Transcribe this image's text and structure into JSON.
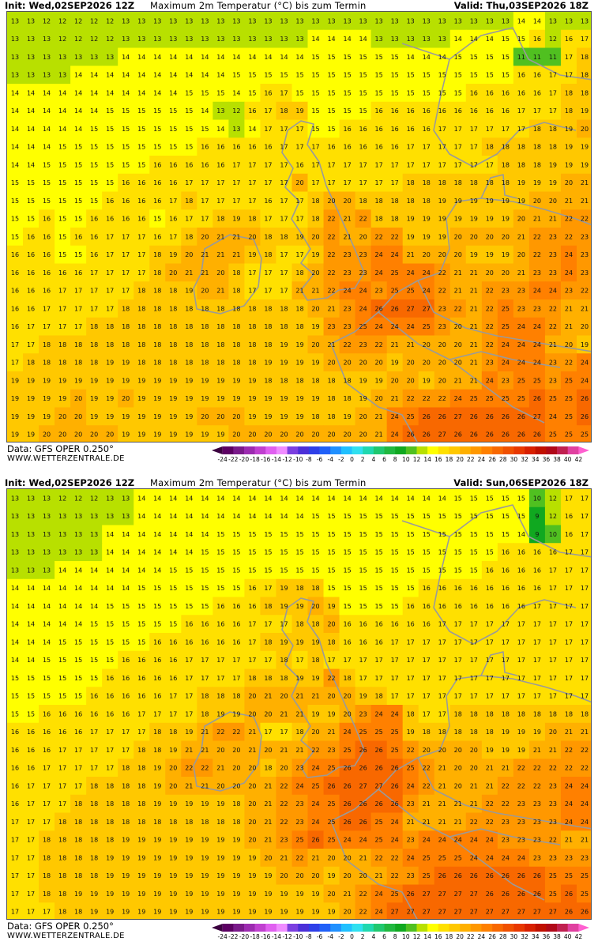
{
  "panels": [
    {
      "init": "Init: Wed,02SEP2026 12Z",
      "title": "Maximum 2m Temperatur (°C) bis zum Termin",
      "valid": "Valid: Thu,03SEP2026 18Z",
      "data_source": "Data: GFS OPER 0.250°",
      "website": "WWW.WETTERZENTRALE.DE",
      "rows": [
        "13 13 12 12 12 12 12 13 13 13 13 13 13 13 13 13 13 13 13 13 13 13 13 13 13 13 13 13 13 13 13 13 14 14 13 13 13",
        "13 13 13 12 12 12 12 13 13 13 13 13 13 13 13 13 13 13 13 14 14 14 14 13 13 13 13 13 14 14 14 15 15 16 12 16 17",
        "13 13 13 13 13 13 13 14 14 14 14 14 14 14 14 14 14 14 14 15 15 15 15 15 15 14 14 14 15 15 15 15 11 11 11 17 18",
        "13 13 13 13 14 14 14 14 14 14 14 14 14 14 15 15 15 15 15 15 15 15 15 15 15 15 15 15 15 15 15 15 16 16 17 17 18",
        "14 14 14 14 14 14 14 14 14 14 14 15 15 15 14 15 16 17 15 15 15 15 15 15 15 15 15 15 15 16 16 16 16 16 17 18 18",
        "14 14 14 14 14 14 15 15 15 15 15 15 14 13 12 16 17 18 19 15 15 15 15 16 16 16 16 16 16 16 16 16 17 17 17 18 19",
        "14 14 14 14 14 15 15 15 15 15 15 15 15 14 13 14 17 17 17 15 15 16 16 16 16 16 16 17 17 17 17 17 17 18 18 19 20",
        "14 14 14 15 15 15 15 15 15 15 15 15 16 16 16 16 16 17 17 17 16 16 16 16 16 17 17 17 17 17 18 18 18 18 18 19 19",
        "14 14 15 15 15 15 15 15 15 16 16 16 16 16 17 17 17 17 16 17 17 17 17 17 17 17 17 17 17 17 17 18 18 18 19 19 19",
        "15 15 15 15 15 15 15 16 16 16 16 17 17 17 17 17 17 17 20 17 17 17 17 17 17 18 18 18 18 18 18 18 19 19 19 20 21",
        "15 15 15 15 15 15 16 16 16 16 17 18 17 17 17 17 16 17 17 18 20 20 18 18 18 18 18 19 19 19 19 19 19 20 20 21 21",
        "15 15 16 15 15 16 16 16 16 15 16 17 17 18 19 18 17 17 17 18 22 21 22 18 18 19 19 19 19 19 19 19 20 21 21 22 22",
        "15 16 16 15 16 16 17 17 17 16 17 18 20 21 21 20 18 18 19 20 22 21 20 22 22 19 19 19 20 20 20 20 21 22 23 22 23",
        "16 16 16 15 15 16 17 17 17 18 19 20 21 21 21 19 18 17 17 19 22 23 23 24 24 21 20 20 20 19 19 19 20 22 23 24 23",
        "16 16 16 16 16 17 17 17 17 18 20 21 21 20 18 17 17 17 18 20 22 23 23 24 25 24 24 22 21 21 20 20 21 23 23 24 23",
        "16 16 16 17 17 17 17 17 18 18 18 19 20 21 18 17 17 17 21 21 22 24 24 23 25 25 24 22 21 21 22 23 23 24 24 23 22",
        "16 16 17 17 17 17 17 18 18 18 18 18 18 18 18 18 18 18 18 20 21 23 24 26 26 27 27 23 22 21 22 25 23 23 22 21 21",
        "16 17 17 17 17 18 18 18 18 18 18 18 18 18 18 18 18 18 18 19 23 23 25 24 24 24 25 23 20 21 22 25 24 24 22 21 20",
        "17 17 18 18 18 18 18 18 18 18 18 18 18 18 18 18 18 19 19 20 21 22 23 22 21 21 20 20 20 21 22 24 24 24 21 20 19",
        "17 18 18 18 18 18 19 19 18 18 18 18 18 18 18 18 19 19 19 19 20 20 20 20 19 20 20 20 20 21 23 24 24 24 23 22 24",
        "19 19 19 19 19 19 19 19 19 19 19 19 19 19 19 19 18 18 18 18 18 18 19 19 20 20 19 20 21 21 24 23 25 25 23 25 24",
        "19 19 19 19 20 19 19 20 19 19 19 19 19 19 19 19 19 19 19 19 18 18 19 20 21 22 22 22 24 25 25 25 25 26 25 25 26",
        "19 19 19 20 20 19 19 19 19 19 19 19 20 20 20 19 19 19 19 18 18 19 20 21 24 25 26 26 27 26 26 26 26 27 24 25 26",
        "19 19 20 20 20 20 20 19 19 19 19 19 19 19 20 20 20 20 20 20 20 20 20 21 24 26 26 27 26 26 26 26 26 26 25 25 25"
      ]
    },
    {
      "init": "Init: Wed,02SEP2026 12Z",
      "title": "Maximum 2m Temperatur (°C) bis zum Termin",
      "valid": "Valid: Sun,06SEP2026 18Z",
      "data_source": "Data: GFS OPER 0.250°",
      "website": "WWW.WETTERZENTRALE.DE",
      "rows": [
        "13 13 13 12 12 12 13 13 14 14 14 14 14 14 14 14 14 14 14 14 14 14 14 14 14 14 14 14 15 15 15 15 15 10 12 17 17",
        "13 13 13 13 13 13 13 13 14 14 14 14 14 14 14 14 14 14 14 15 15 15 15 15 15 15 15 15 15 15 15 15 15 9 12 16 17",
        "13 13 13 13 13 13 14 14 14 14 14 14 14 15 15 15 15 15 15 15 15 15 15 15 15 15 15 15 15 15 15 15 14 9 10 16 17",
        "13 13 13 13 13 13 14 14 14 14 14 14 15 15 15 15 15 15 15 15 15 15 15 15 15 15 15 15 15 15 15 16 16 16 16 17 17",
        "13 13 13 14 14 14 14 14 14 14 15 15 15 15 15 15 15 15 15 15 15 15 15 15 15 15 15 15 15 15 16 16 16 16 17 17 17",
        "14 14 14 14 14 14 14 14 15 15 15 15 15 15 15 16 17 19 18 18 15 15 15 15 15 15 16 16 16 16 16 16 16 16 17 17 17",
        "14 14 14 14 14 14 15 15 15 15 15 15 15 16 16 16 18 19 19 20 19 15 15 15 15 16 16 16 16 16 16 16 16 17 17 17 17",
        "14 14 14 14 14 15 15 15 15 15 15 16 16 16 16 17 17 17 18 18 20 16 16 16 16 16 16 17 17 17 17 17 17 17 17 17 17",
        "14 14 14 15 15 15 15 15 15 16 16 16 16 16 16 17 18 19 19 19 18 16 16 16 17 17 17 17 17 17 17 17 17 17 17 17 17",
        "14 14 15 15 15 15 15 16 16 16 16 17 17 17 17 17 17 18 17 18 17 17 17 17 17 17 17 17 17 17 17 17 17 17 17 17 17",
        "15 15 15 15 15 15 16 16 16 16 16 17 17 17 17 18 18 18 19 19 22 18 17 17 17 17 17 17 17 17 17 17 17 17 17 17 17",
        "15 15 15 15 15 16 16 16 16 16 17 17 18 18 18 20 21 20 21 21 20 20 19 18 17 17 17 17 17 17 17 17 17 17 17 17 17",
        "15 15 16 16 16 16 16 16 17 17 17 17 18 19 19 20 20 21 21 19 19 20 23 24 24 18 17 17 18 18 18 18 18 18 18 18 18",
        "16 16 16 16 16 17 17 17 17 18 18 19 21 22 22 21 17 17 18 20 21 24 25 25 25 19 18 18 18 18 18 19 19 19 20 21 21",
        "16 16 16 17 17 17 17 17 18 18 19 21 21 20 20 21 20 21 21 22 23 25 26 26 25 22 20 20 20 20 19 19 19 21 21 22 22",
        "16 16 17 17 17 17 17 18 18 19 20 22 22 21 20 20 18 20 23 24 25 26 26 26 26 25 22 21 20 20 21 21 22 22 22 22 22",
        "16 17 17 17 17 18 18 18 18 19 20 21 21 20 20 20 21 22 24 25 26 26 27 27 26 24 22 21 20 21 21 22 22 22 23 24 24",
        "16 17 17 17 18 18 18 18 18 19 19 19 19 19 18 20 21 22 23 24 25 26 26 26 26 23 21 21 21 21 22 22 23 23 23 24 24",
        "17 17 17 18 18 18 18 18 18 18 18 18 18 18 18 20 21 22 23 24 25 26 26 25 24 21 21 21 21 22 22 23 23 23 23 24 24",
        "17 17 18 18 18 18 18 19 19 19 19 19 19 19 19 20 21 23 25 26 25 24 24 25 24 23 24 24 24 24 24 23 23 23 22 21 21",
        "17 17 18 18 18 18 19 19 19 19 19 19 19 19 19 19 20 21 22 21 20 20 21 22 22 24 25 25 25 24 24 24 24 23 23 23 23",
        "17 17 18 18 18 18 19 19 19 19 19 19 19 19 19 19 19 20 20 20 19 20 20 21 22 23 25 26 26 26 26 26 26 26 25 25 25",
        "17 17 18 18 19 19 19 19 19 19 19 19 19 19 19 19 19 19 19 19 20 21 22 24 25 26 27 27 27 27 26 26 26 26 25 26 25",
        "17 17 17 18 18 19 19 19 19 19 19 19 19 19 19 19 19 19 19 19 19 20 22 24 27 27 27 27 27 27 27 27 27 27 27 26 26"
      ]
    }
  ],
  "colorbar": {
    "ticks": [
      "-24",
      "-22",
      "-20",
      "-18",
      "-16",
      "-14",
      "-12",
      "-10",
      "-8",
      "-6",
      "-4",
      "-2",
      "0",
      "2",
      "4",
      "6",
      "8",
      "10",
      "12",
      "14",
      "16",
      "18",
      "20",
      "22",
      "24",
      "26",
      "28",
      "30",
      "32",
      "34",
      "36",
      "38",
      "40",
      "42"
    ],
    "colors": [
      "#3b003f",
      "#5c0063",
      "#7a1a8a",
      "#9c2bb0",
      "#c040d0",
      "#e060f0",
      "#f08cff",
      "#7b3fe0",
      "#4b2fd8",
      "#2e3fe8",
      "#2060f8",
      "#2090ff",
      "#20c0ff",
      "#30e0f0",
      "#20d8b0",
      "#20c870",
      "#20b840",
      "#10a820",
      "#50c020",
      "#b8e000",
      "#ffff00",
      "#ffe000",
      "#ffc800",
      "#ffb000",
      "#ff9800",
      "#ff8000",
      "#f86800",
      "#f05000",
      "#e83800",
      "#d82000",
      "#c01000",
      "#b00818",
      "#c02050",
      "#e040a0",
      "#ff60d0"
    ],
    "land_outline_color": "#9a9a9a"
  }
}
